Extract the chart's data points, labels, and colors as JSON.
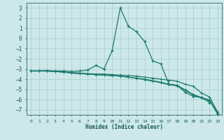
{
  "title": "",
  "xlabel": "Humidex (Indice chaleur)",
  "xlim": [
    -0.5,
    23.5
  ],
  "ylim": [
    -7.5,
    3.5
  ],
  "xticks": [
    0,
    1,
    2,
    3,
    4,
    5,
    6,
    7,
    8,
    9,
    10,
    11,
    12,
    13,
    14,
    15,
    16,
    17,
    18,
    19,
    20,
    21,
    22,
    23
  ],
  "yticks": [
    -7,
    -6,
    -5,
    -4,
    -3,
    -2,
    -1,
    0,
    1,
    2,
    3
  ],
  "bg_color": "#cce8e8",
  "line_color": "#1a7a6e",
  "grid_color": "#aacccc",
  "line1": [
    [
      0,
      -3.2
    ],
    [
      1,
      -3.2
    ],
    [
      2,
      -3.15
    ],
    [
      3,
      -3.2
    ],
    [
      4,
      -3.2
    ],
    [
      5,
      -3.25
    ],
    [
      6,
      -3.2
    ],
    [
      7,
      -3.1
    ],
    [
      8,
      -2.65
    ],
    [
      9,
      -3.0
    ],
    [
      10,
      -1.2
    ],
    [
      11,
      3.0
    ],
    [
      12,
      1.2
    ],
    [
      13,
      0.65
    ],
    [
      14,
      -0.3
    ],
    [
      15,
      -2.2
    ],
    [
      16,
      -2.5
    ],
    [
      17,
      -4.5
    ],
    [
      18,
      -4.6
    ],
    [
      19,
      -5.3
    ],
    [
      20,
      -5.7
    ],
    [
      21,
      -5.8
    ],
    [
      22,
      -6.3
    ]
  ],
  "line2": [
    [
      0,
      -3.2
    ],
    [
      1,
      -3.2
    ],
    [
      2,
      -3.2
    ],
    [
      3,
      -3.25
    ],
    [
      4,
      -3.3
    ],
    [
      5,
      -3.35
    ],
    [
      6,
      -3.4
    ],
    [
      7,
      -3.45
    ],
    [
      8,
      -3.5
    ],
    [
      9,
      -3.5
    ],
    [
      10,
      -3.55
    ],
    [
      11,
      -3.6
    ],
    [
      12,
      -3.65
    ],
    [
      13,
      -3.7
    ],
    [
      14,
      -3.8
    ],
    [
      15,
      -3.9
    ],
    [
      16,
      -4.0
    ],
    [
      17,
      -4.1
    ],
    [
      18,
      -4.2
    ],
    [
      19,
      -4.5
    ],
    [
      20,
      -4.7
    ],
    [
      21,
      -5.35
    ],
    [
      22,
      -5.75
    ],
    [
      23,
      -7.25
    ]
  ],
  "line3": [
    [
      0,
      -3.2
    ],
    [
      1,
      -3.2
    ],
    [
      2,
      -3.2
    ],
    [
      3,
      -3.25
    ],
    [
      4,
      -3.3
    ],
    [
      5,
      -3.4
    ],
    [
      6,
      -3.45
    ],
    [
      7,
      -3.5
    ],
    [
      8,
      -3.55
    ],
    [
      9,
      -3.6
    ],
    [
      10,
      -3.65
    ],
    [
      11,
      -3.7
    ],
    [
      12,
      -3.8
    ],
    [
      13,
      -3.9
    ],
    [
      14,
      -4.0
    ],
    [
      15,
      -4.15
    ],
    [
      16,
      -4.3
    ],
    [
      17,
      -4.5
    ],
    [
      18,
      -4.6
    ],
    [
      19,
      -5.05
    ],
    [
      20,
      -5.5
    ],
    [
      21,
      -5.8
    ],
    [
      22,
      -6.05
    ],
    [
      23,
      -7.35
    ]
  ],
  "line4": [
    [
      0,
      -3.2
    ],
    [
      1,
      -3.2
    ],
    [
      2,
      -3.2
    ],
    [
      3,
      -3.25
    ],
    [
      4,
      -3.3
    ],
    [
      5,
      -3.4
    ],
    [
      6,
      -3.45
    ],
    [
      7,
      -3.5
    ],
    [
      8,
      -3.55
    ],
    [
      9,
      -3.6
    ],
    [
      10,
      -3.65
    ],
    [
      11,
      -3.7
    ],
    [
      12,
      -3.8
    ],
    [
      13,
      -3.9
    ],
    [
      14,
      -4.05
    ],
    [
      15,
      -4.2
    ],
    [
      16,
      -4.35
    ],
    [
      17,
      -4.55
    ],
    [
      18,
      -4.65
    ],
    [
      19,
      -5.1
    ],
    [
      20,
      -5.55
    ],
    [
      21,
      -5.85
    ],
    [
      22,
      -6.1
    ],
    [
      23,
      -7.45
    ]
  ]
}
